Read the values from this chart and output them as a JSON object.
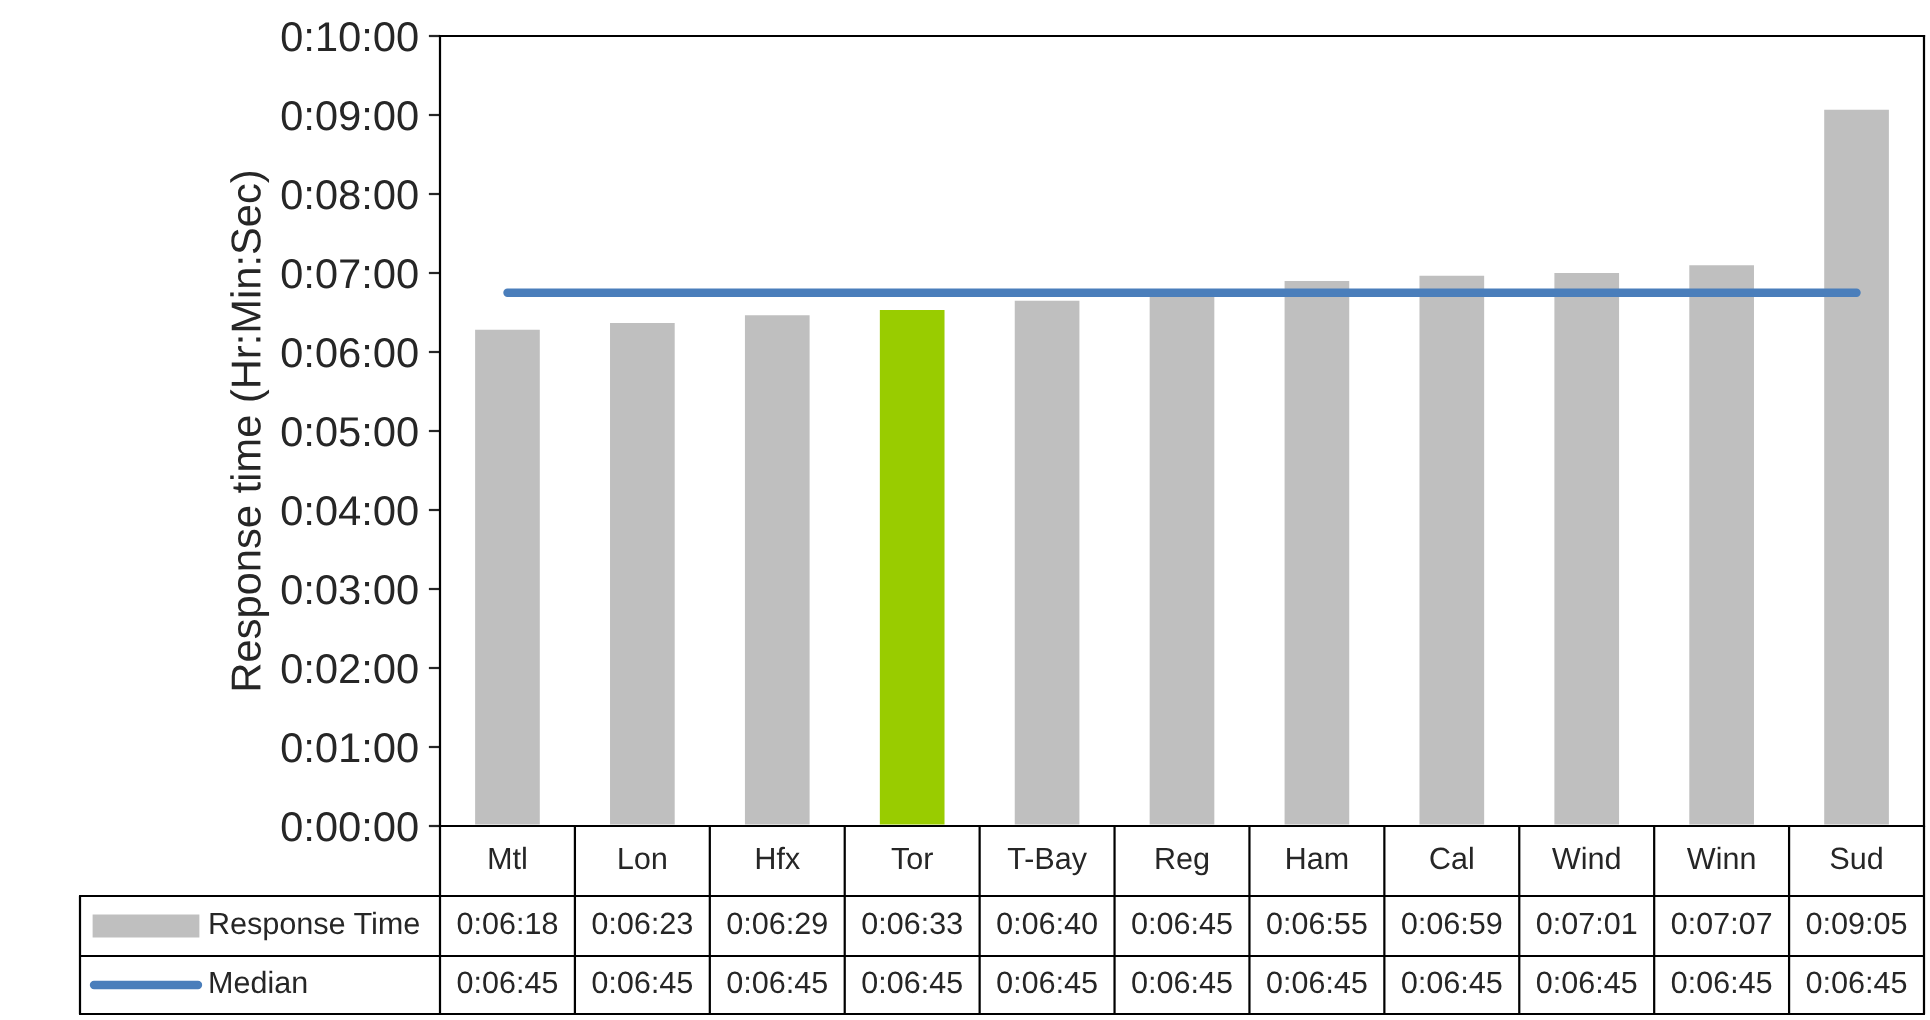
{
  "chart_data": {
    "type": "bar",
    "ylabel": "Response time (Hr:Min:Sec)",
    "categories": [
      "Mtl",
      "Lon",
      "Hfx",
      "Tor",
      "T-Bay",
      "Reg",
      "Ham",
      "Cal",
      "Wind",
      "Winn",
      "Sud"
    ],
    "series": [
      {
        "name": "Response Time",
        "color": "#bfbfbf",
        "colors": [
          "#bfbfbf",
          "#bfbfbf",
          "#bfbfbf",
          "#99cc00",
          "#bfbfbf",
          "#bfbfbf",
          "#bfbfbf",
          "#bfbfbf",
          "#bfbfbf",
          "#bfbfbf",
          "#bfbfbf"
        ],
        "values": [
          378,
          383,
          389,
          393,
          400,
          405,
          415,
          419,
          421,
          427,
          545
        ],
        "value_labels": [
          "0:06:18",
          "0:06:23",
          "0:06:29",
          "0:06:33",
          "0:06:40",
          "0:06:45",
          "0:06:55",
          "0:06:59",
          "0:07:01",
          "0:07:07",
          "0:09:05"
        ]
      },
      {
        "name": "Median",
        "type": "line",
        "color": "#4a7ebb",
        "values": [
          405,
          405,
          405,
          405,
          405,
          405,
          405,
          405,
          405,
          405,
          405
        ],
        "value_labels": [
          "0:06:45",
          "0:06:45",
          "0:06:45",
          "0:06:45",
          "0:06:45",
          "0:06:45",
          "0:06:45",
          "0:06:45",
          "0:06:45",
          "0:06:45",
          "0:06:45"
        ]
      }
    ],
    "ylim": [
      0,
      600
    ],
    "yticks": [
      {
        "value": 0,
        "label": "0:00:00"
      },
      {
        "value": 60,
        "label": "0:01:00"
      },
      {
        "value": 120,
        "label": "0:02:00"
      },
      {
        "value": 180,
        "label": "0:03:00"
      },
      {
        "value": 240,
        "label": "0:04:00"
      },
      {
        "value": 300,
        "label": "0:05:00"
      },
      {
        "value": 360,
        "label": "0:06:00"
      },
      {
        "value": 420,
        "label": "0:07:00"
      },
      {
        "value": 480,
        "label": "0:08:00"
      },
      {
        "value": 540,
        "label": "0:09:00"
      },
      {
        "value": 600,
        "label": "0:10:00"
      }
    ],
    "grid": false,
    "legend": "bottom"
  }
}
